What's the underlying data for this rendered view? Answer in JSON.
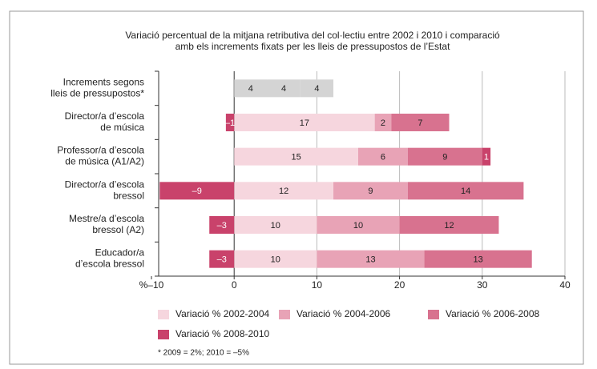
{
  "chart_data": {
    "type": "stacked_bar_horizontal",
    "title": "Variació percentual de la mitjana retributiva del col·lectiu entre 2002 i 2010 i comparació\namb els increments fixats per les lleis de pressupostos de l’Estat",
    "categories": [
      "Increments segons\nlleis de pressupostos*",
      "Director/a d’escola\nde música",
      "Professor/a d’escola\nde música (A1/A2)",
      "Director/a d’escola\nbressol",
      "Mestre/a d’escola\nbressol (A2)",
      "Educador/a\nd’escola bressol"
    ],
    "series": [
      {
        "name": "Variació % 2002-2004",
        "color": "#f6d6de",
        "values": [
          4,
          17,
          15,
          12,
          10,
          10
        ]
      },
      {
        "name": "Variació % 2004-2006",
        "color": "#e8a3b6",
        "values": [
          4,
          2,
          6,
          9,
          10,
          13
        ]
      },
      {
        "name": "Variació % 2006-2008",
        "color": "#d8728f",
        "values": [
          4,
          7,
          9,
          14,
          12,
          13
        ]
      },
      {
        "name": "Variació % 2008-2010",
        "color": "#c9426b",
        "values": [
          null,
          -1,
          1,
          -9,
          -3,
          -3
        ],
        "value_labels": [
          null,
          "–1",
          "1",
          "–9",
          "–3",
          "–3"
        ]
      }
    ],
    "reference_category": 0,
    "reference_color": "#d4d4d4",
    "xlim": [
      -10,
      40
    ],
    "xticks": [
      {
        "value": -10,
        "label": "%–10"
      },
      0,
      10,
      20,
      30,
      40
    ],
    "grid": true,
    "legend": "bottom",
    "note": "* 2009 = 2%;  2010 = –5%"
  }
}
